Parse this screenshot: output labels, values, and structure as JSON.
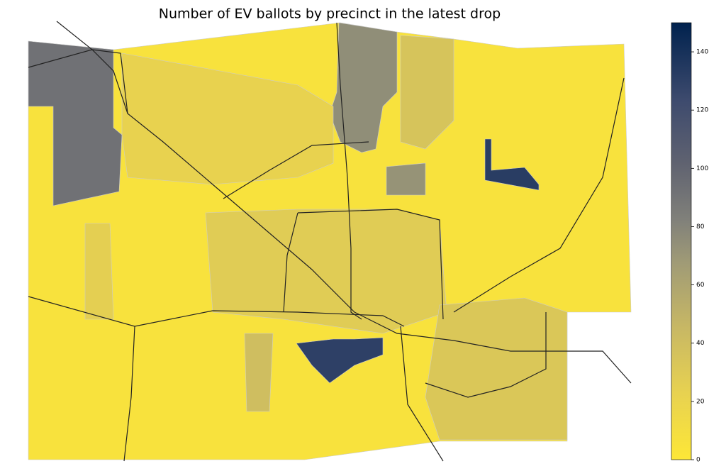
{
  "chart_data": {
    "type": "choropleth",
    "title": "Number of EV ballots by precinct in the latest drop",
    "colormap": "cividis_r",
    "clim": [
      0,
      150
    ],
    "cticks": [
      0,
      20,
      40,
      60,
      80,
      100,
      120,
      140
    ],
    "values": [
      5,
      92,
      75,
      22,
      28,
      32,
      132,
      130,
      72,
      25,
      40,
      35
    ]
  }
}
